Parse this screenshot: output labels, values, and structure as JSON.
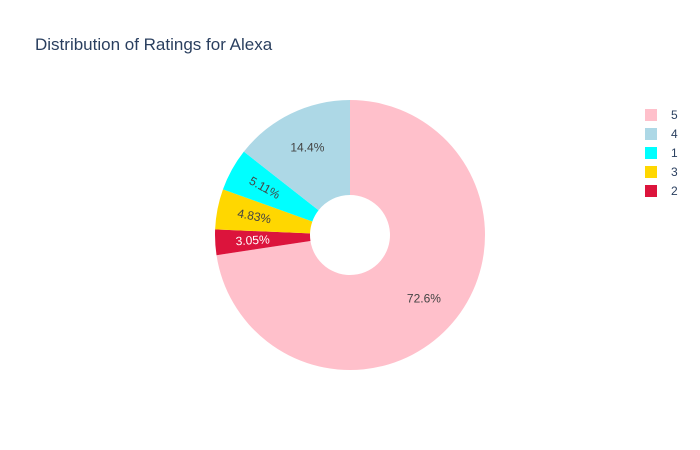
{
  "chart_data": {
    "type": "pie",
    "hole": true,
    "title": "Distribution of Ratings for Alexa",
    "legend_position": "right",
    "slices": [
      {
        "label": "5",
        "percent": 72.6,
        "text": "72.6%",
        "color": "#FFC0CB",
        "text_color": "#444444"
      },
      {
        "label": "2",
        "percent": 3.05,
        "text": "3.05%",
        "color": "#DC143C",
        "text_color": "#ffffff"
      },
      {
        "label": "3",
        "percent": 4.83,
        "text": "4.83%",
        "color": "#FFD700",
        "text_color": "#444444"
      },
      {
        "label": "1",
        "percent": 5.11,
        "text": "5.11%",
        "color": "#00FFFF",
        "text_color": "#444444"
      },
      {
        "label": "4",
        "percent": 14.4,
        "text": "14.4%",
        "color": "#ADD8E6",
        "text_color": "#444444"
      }
    ],
    "legend_order": [
      "5",
      "4",
      "1",
      "3",
      "2"
    ]
  }
}
